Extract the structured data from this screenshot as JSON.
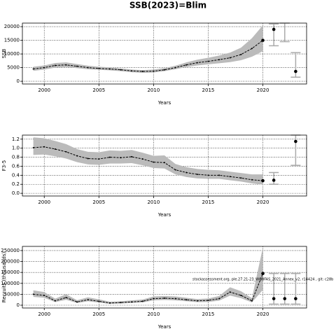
{
  "title": "SSB(2023)=Blim",
  "annotation": "stockassessment.org, ple.27.21-23_WGBFAS_2021_Annex_v2, r14424 , git: c28b",
  "chart_data": [
    {
      "type": "line",
      "ylabel": "SSB",
      "xlabel": "Years",
      "grid": true,
      "color": "#000000",
      "band_color": "#bbbbbb",
      "proj_color": "#aaaaaa",
      "xlim": [
        1998,
        2024
      ],
      "xticks": [
        2000,
        2005,
        2010,
        2015,
        2020
      ],
      "ylim": [
        -1000,
        21300
      ],
      "yticks": [
        0,
        5000,
        10000,
        15000,
        20000
      ],
      "x": [
        1999,
        2000,
        2001,
        2002,
        2003,
        2004,
        2005,
        2006,
        2007,
        2008,
        2009,
        2010,
        2011,
        2012,
        2013,
        2014,
        2015,
        2016,
        2017,
        2018,
        2019,
        2020
      ],
      "values": [
        4500,
        5000,
        5800,
        6000,
        5500,
        5000,
        4700,
        4500,
        4200,
        3800,
        3600,
        3700,
        4200,
        5000,
        6000,
        6800,
        7300,
        7900,
        8600,
        9800,
        12000,
        15000
      ],
      "low": [
        3800,
        4300,
        5000,
        5200,
        4800,
        4400,
        4200,
        4000,
        3700,
        3300,
        3100,
        3200,
        3700,
        4400,
        5200,
        5800,
        6200,
        6600,
        7000,
        7700,
        9000,
        11000
      ],
      "high": [
        5300,
        5800,
        6700,
        6900,
        6300,
        5700,
        5300,
        5100,
        4700,
        4300,
        4100,
        4300,
        4800,
        5700,
        6900,
        7900,
        8600,
        9400,
        10500,
        12300,
        15800,
        20500
      ],
      "proj_x": [
        2021,
        2022,
        2023
      ],
      "proj_values": [
        19000,
        null,
        3600
      ],
      "proj_low": [
        13000,
        14500,
        1500
      ],
      "proj_high": [
        21000,
        21300,
        10500
      ]
    },
    {
      "type": "line",
      "ylabel": "F3-5",
      "xlabel": "Years",
      "grid": true,
      "color": "#000000",
      "band_color": "#bbbbbb",
      "proj_color": "#aaaaaa",
      "xlim": [
        1998,
        2024
      ],
      "xticks": [
        2000,
        2005,
        2010,
        2015,
        2020
      ],
      "ylim": [
        -0.06,
        1.29
      ],
      "yticks": [
        {
          "value": 0,
          "label": "0.0"
        },
        0.2,
        0.4,
        0.6,
        0.8,
        {
          "value": 1,
          "label": "1.0"
        },
        1.2
      ],
      "x": [
        1999,
        2000,
        2001,
        2002,
        2003,
        2004,
        2005,
        2006,
        2007,
        2008,
        2009,
        2010,
        2011,
        2012,
        2013,
        2014,
        2015,
        2016,
        2017,
        2018,
        2019,
        2020
      ],
      "values": [
        1.01,
        1.03,
        0.98,
        0.92,
        0.83,
        0.77,
        0.76,
        0.8,
        0.79,
        0.81,
        0.76,
        0.69,
        0.68,
        0.52,
        0.46,
        0.42,
        0.4,
        0.4,
        0.37,
        0.34,
        0.3,
        0.28
      ],
      "low": [
        0.85,
        0.86,
        0.82,
        0.77,
        0.69,
        0.64,
        0.63,
        0.66,
        0.66,
        0.67,
        0.62,
        0.56,
        0.55,
        0.42,
        0.36,
        0.33,
        0.32,
        0.32,
        0.29,
        0.26,
        0.22,
        0.19
      ],
      "high": [
        1.24,
        1.22,
        1.16,
        1.09,
        0.98,
        0.92,
        0.91,
        0.95,
        0.94,
        0.96,
        0.9,
        0.83,
        0.84,
        0.65,
        0.58,
        0.54,
        0.52,
        0.51,
        0.48,
        0.45,
        0.42,
        0.42
      ],
      "proj_x": [
        2021,
        2022,
        2023
      ],
      "proj_values": [
        0.29,
        null,
        1.15
      ],
      "proj_low": [
        0.2,
        null,
        0.62
      ],
      "proj_high": [
        0.46,
        null,
        1.29
      ]
    },
    {
      "type": "line",
      "ylabel": "Recruits (thousands)",
      "xlabel": "Years",
      "grid": true,
      "color": "#000000",
      "band_color": "#bbbbbb",
      "proj_color": "#aaaaaa",
      "xlim": [
        1998,
        2024
      ],
      "xticks": [
        2000,
        2005,
        2010,
        2015,
        2020
      ],
      "ylim": [
        -12800,
        269000
      ],
      "yticks": [
        0,
        50000,
        100000,
        150000,
        200000,
        250000
      ],
      "x": [
        1999,
        2000,
        2001,
        2002,
        2003,
        2004,
        2005,
        2006,
        2007,
        2008,
        2009,
        2010,
        2011,
        2012,
        2013,
        2014,
        2015,
        2016,
        2017,
        2018,
        2019,
        2020
      ],
      "values": [
        50000,
        45000,
        20000,
        35000,
        15000,
        25000,
        18000,
        10000,
        12000,
        15000,
        18000,
        30000,
        32000,
        30000,
        25000,
        20000,
        22000,
        30000,
        60000,
        45000,
        20000,
        145000
      ],
      "low": [
        38000,
        34000,
        14000,
        25000,
        10000,
        18000,
        12000,
        6000,
        8000,
        10000,
        13000,
        22000,
        24000,
        22000,
        18000,
        14000,
        15000,
        21000,
        44000,
        32000,
        13000,
        70000
      ],
      "high": [
        68000,
        60000,
        30000,
        50000,
        23000,
        36000,
        27000,
        16000,
        18000,
        22000,
        26000,
        40000,
        42000,
        40000,
        34000,
        28000,
        31000,
        42000,
        82000,
        64000,
        32000,
        265000
      ],
      "proj_x": [
        2021,
        2022,
        2023
      ],
      "proj_values": [
        30000,
        30000,
        30000
      ],
      "proj_low": [
        5000,
        5000,
        5000
      ],
      "proj_high": [
        145000,
        145000,
        145000
      ]
    }
  ]
}
